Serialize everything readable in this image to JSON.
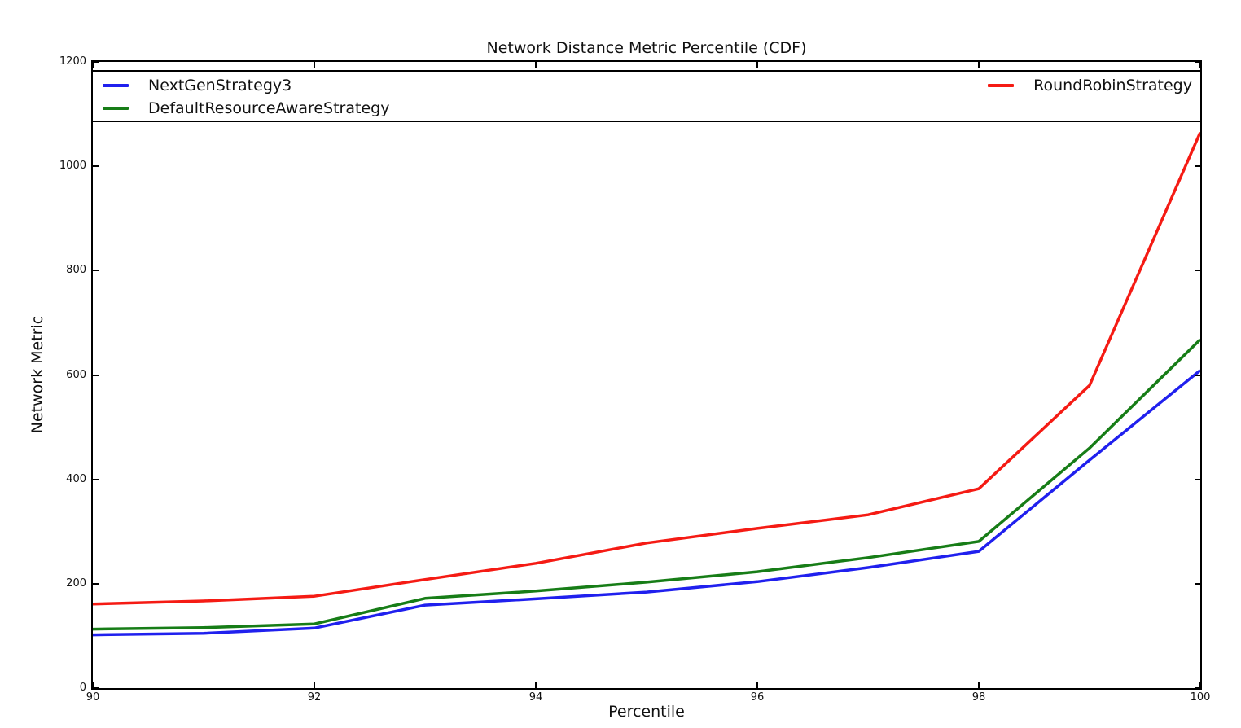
{
  "chart_data": {
    "type": "line",
    "title": "Network Distance Metric Percentile (CDF)",
    "xlabel": "Percentile",
    "ylabel": "Network Metric",
    "xlim": [
      90,
      100
    ],
    "ylim": [
      0,
      1200
    ],
    "xticks": [
      90,
      92,
      94,
      96,
      98,
      100
    ],
    "yticks": [
      0,
      200,
      400,
      600,
      800,
      1000,
      1200
    ],
    "grid": false,
    "legend_position": "top, full-width box, two columns",
    "x": [
      90,
      91,
      92,
      93,
      94,
      95,
      96,
      97,
      98,
      99,
      100
    ],
    "series": [
      {
        "name": "NextGenStrategy3",
        "color": "#2020ee",
        "values": [
          102,
          105,
          115,
          159,
          171,
          184,
          204,
          231,
          262,
          437,
          609
        ]
      },
      {
        "name": "DefaultResourceAwareStrategy",
        "color": "#177d17",
        "values": [
          113,
          116,
          123,
          172,
          186,
          203,
          223,
          250,
          281,
          460,
          668
        ]
      },
      {
        "name": "RoundRobinStrategy",
        "color": "#f51b14",
        "values": [
          161,
          167,
          176,
          208,
          239,
          278,
          306,
          332,
          382,
          580,
          1065
        ]
      }
    ],
    "line_width": 3.5
  }
}
